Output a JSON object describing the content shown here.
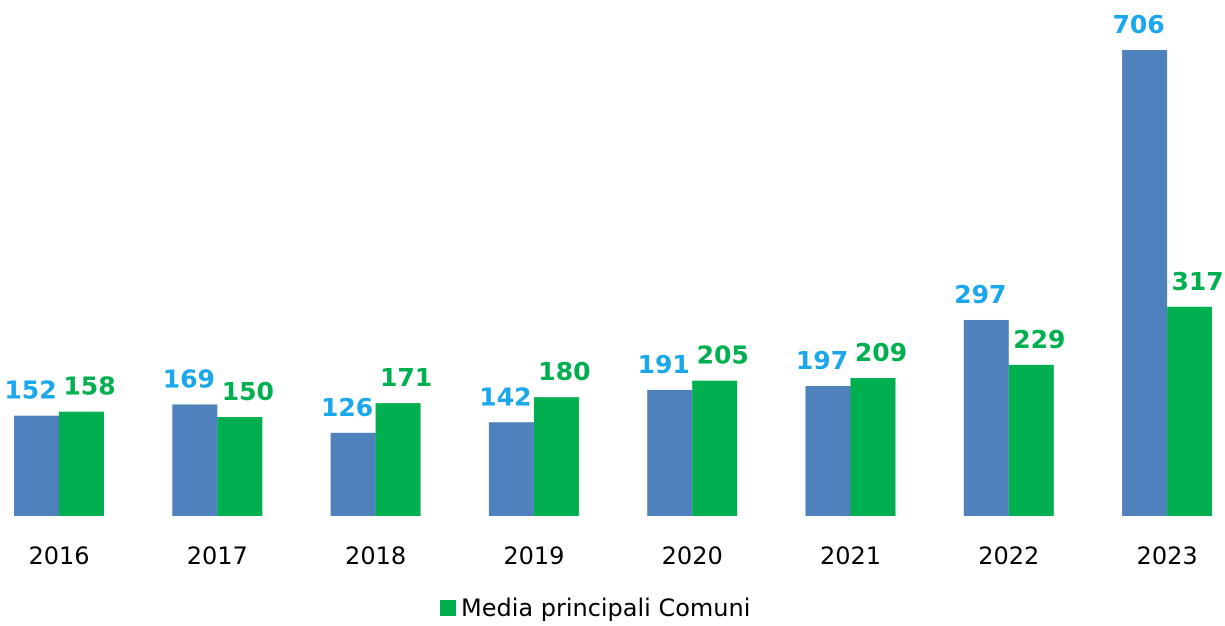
{
  "chart_data": {
    "type": "bar",
    "categories": [
      "2016",
      "2017",
      "2018",
      "2019",
      "2020",
      "2021",
      "2022",
      "2023"
    ],
    "series": [
      {
        "color": "#4f81bd",
        "label_color": "#1aa7ec",
        "values": [
          152,
          169,
          126,
          142,
          191,
          197,
          297,
          706
        ]
      },
      {
        "name": "Media principali Comuni",
        "color": "#00b050",
        "label_color": "#00b050",
        "values": [
          158,
          150,
          171,
          180,
          205,
          209,
          229,
          317
        ]
      }
    ],
    "legend": "bottom"
  }
}
